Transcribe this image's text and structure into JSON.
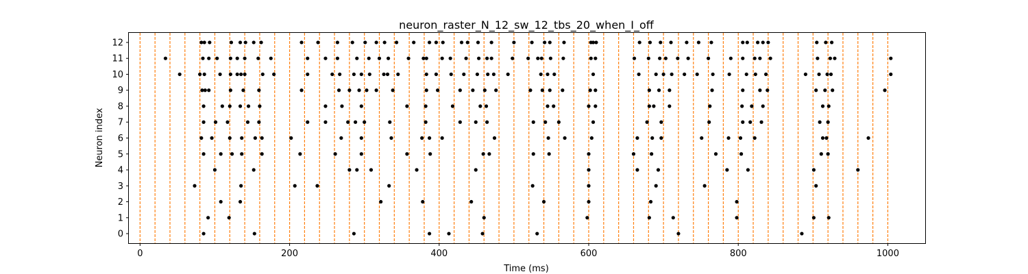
{
  "chart_data": {
    "type": "scatter",
    "title": "neuron_raster_N_12_sw_12_tbs_20_when_I_off",
    "xlabel": "Time (ms)",
    "ylabel": "Neuron index",
    "xlim": [
      -15,
      1050
    ],
    "ylim": [
      -0.6,
      12.6
    ],
    "x_ticks": [
      0,
      200,
      400,
      600,
      800,
      1000
    ],
    "y_ticks": [
      0,
      1,
      2,
      3,
      4,
      5,
      6,
      7,
      8,
      9,
      10,
      11,
      12
    ],
    "grid": false,
    "marker_color": "#000000",
    "vline_color": "#ff7f0e",
    "vlines": [
      0,
      20,
      40,
      60,
      80,
      100,
      120,
      140,
      160,
      180,
      200,
      220,
      240,
      260,
      280,
      300,
      320,
      340,
      360,
      380,
      400,
      420,
      440,
      460,
      480,
      500,
      520,
      540,
      560,
      580,
      600,
      620,
      640,
      660,
      680,
      700,
      720,
      740,
      760,
      780,
      800,
      820,
      840,
      860,
      880,
      900,
      920,
      940,
      960,
      980,
      1000
    ],
    "series": [
      {
        "neuron": 12,
        "times": [
          82,
          86,
          93,
          122,
          134,
          141,
          152,
          162,
          216,
          238,
          264,
          284,
          301,
          316,
          327,
          343,
          366,
          387,
          396,
          405,
          430,
          438,
          452,
          470,
          500,
          524,
          541,
          548,
          567,
          603,
          606,
          610,
          668,
          682,
          696,
          710,
          731,
          747,
          764,
          806,
          812,
          826,
          833,
          840,
          905,
          917,
          925
        ]
      },
      {
        "neuron": 11,
        "times": [
          34,
          84,
          92,
          103,
          121,
          130,
          140,
          158,
          175,
          224,
          248,
          264,
          290,
          306,
          320,
          332,
          359,
          379,
          383,
          404,
          415,
          436,
          453,
          464,
          470,
          498,
          519,
          532,
          537,
          549,
          566,
          603,
          609,
          661,
          680,
          695,
          703,
          719,
          733,
          760,
          790,
          806,
          822,
          829,
          843,
          906,
          923,
          929,
          1004
        ]
      },
      {
        "neuron": 10,
        "times": [
          53,
          80,
          86,
          107,
          121,
          130,
          135,
          140,
          164,
          179,
          224,
          257,
          267,
          286,
          296,
          307,
          326,
          331,
          345,
          383,
          396,
          416,
          433,
          451,
          465,
          473,
          492,
          536,
          545,
          554,
          606,
          667,
          690,
          700,
          711,
          728,
          745,
          766,
          788,
          811,
          823,
          837,
          890,
          908,
          919,
          924,
          1004
        ]
      },
      {
        "neuron": 9,
        "times": [
          83,
          87,
          92,
          121,
          138,
          159,
          216,
          266,
          280,
          293,
          303,
          316,
          338,
          383,
          398,
          428,
          445,
          461,
          476,
          522,
          538,
          548,
          565,
          602,
          609,
          681,
          694,
          708,
          765,
          806,
          829,
          839,
          904,
          916,
          926,
          996
        ]
      },
      {
        "neuron": 8,
        "times": [
          85,
          110,
          120,
          134,
          145,
          160,
          248,
          270,
          296,
          357,
          382,
          418,
          455,
          463,
          545,
          553,
          600,
          609,
          681,
          687,
          708,
          762,
          805,
          818,
          833,
          913,
          921
        ]
      },
      {
        "neuron": 7,
        "times": [
          85,
          101,
          117,
          144,
          159,
          224,
          248,
          278,
          288,
          300,
          334,
          382,
          428,
          449,
          464,
          526,
          542,
          560,
          606,
          678,
          697,
          761,
          806,
          816,
          831,
          909,
          920
        ]
      },
      {
        "neuron": 6,
        "times": [
          82,
          96,
          120,
          136,
          154,
          163,
          202,
          269,
          296,
          336,
          377,
          387,
          404,
          474,
          546,
          568,
          604,
          665,
          685,
          697,
          751,
          787,
          803,
          822,
          913,
          918,
          974
        ]
      },
      {
        "neuron": 5,
        "times": [
          85,
          108,
          123,
          136,
          163,
          214,
          261,
          296,
          357,
          388,
          459,
          467,
          526,
          547,
          600,
          660,
          684,
          770,
          804,
          911,
          920
        ]
      },
      {
        "neuron": 4,
        "times": [
          100,
          152,
          280,
          290,
          309,
          370,
          449,
          600,
          665,
          693,
          785,
          813,
          901,
          960
        ]
      },
      {
        "neuron": 3,
        "times": [
          73,
          135,
          207,
          237,
          333,
          525,
          600,
          690,
          755,
          904
        ]
      },
      {
        "neuron": 2,
        "times": [
          108,
          134,
          322,
          378,
          443,
          540,
          600,
          683,
          798
        ]
      },
      {
        "neuron": 1,
        "times": [
          91,
          119,
          460,
          598,
          681,
          713,
          798,
          901,
          921
        ]
      },
      {
        "neuron": 0,
        "times": [
          85,
          153,
          286,
          387,
          413,
          458,
          531,
          720,
          885
        ]
      }
    ]
  }
}
